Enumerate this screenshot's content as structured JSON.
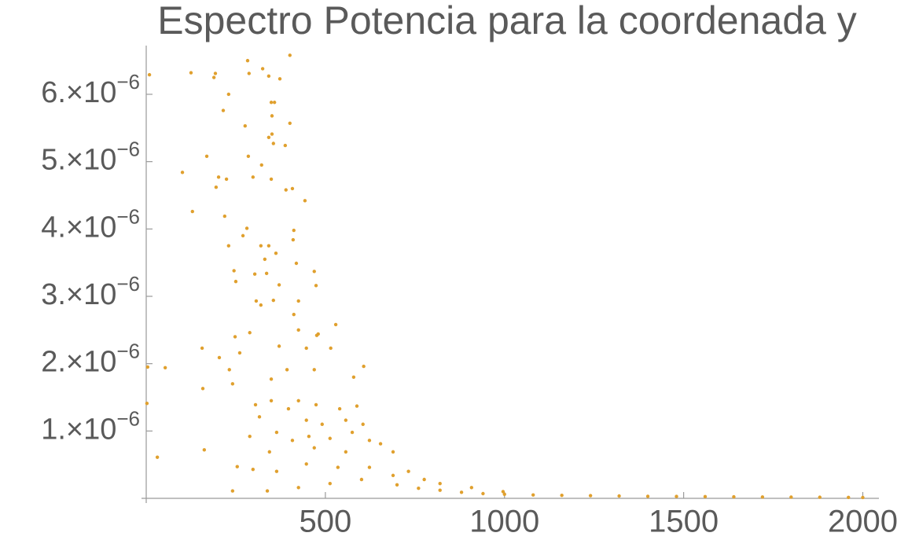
{
  "chart_data": {
    "type": "scatter",
    "title": "Espectro Potencia para la coordenada y",
    "color": "#e0a02e",
    "xlim": [
      0,
      2045
    ],
    "ylim": [
      0,
      6.7e-06
    ],
    "xticks": [
      500,
      1000,
      1500,
      2000
    ],
    "yticks": [
      {
        "value": 1e-06,
        "label": "1.×10−6"
      },
      {
        "value": 2e-06,
        "label": "2.×10−6"
      },
      {
        "value": 3e-06,
        "label": "3.×10−6"
      },
      {
        "value": 4e-06,
        "label": "4.×10−6"
      },
      {
        "value": 5e-06,
        "label": "5.×10−6"
      },
      {
        "value": 6e-06,
        "label": "6.×10−6"
      }
    ],
    "x": [
      9,
      125,
      189,
      193,
      230,
      215,
      283,
      287,
      325,
      342,
      401,
      373,
      349,
      358,
      276,
      351,
      342,
      351,
      355,
      401,
      388,
      101,
      169,
      285,
      322,
      349,
      202,
      224,
      298,
      195,
      408,
      390,
      443,
      129,
      219,
      281,
      270,
      412,
      230,
      320,
      342,
      331,
      362,
      410,
      245,
      419,
      469,
      303,
      336,
      474,
      250,
      371,
      307,
      320,
      355,
      425,
      412,
      529,
      248,
      289,
      425,
      476,
      480,
      156,
      371,
      447,
      515,
      204,
      261,
      393,
      469,
      607,
      4,
      53,
      232,
      349,
      579,
      158,
      241,
      305,
      349,
      397,
      425,
      474,
      540,
      588,
      2,
      316,
      447,
      491,
      557,
      605,
      289,
      364,
      408,
      454,
      513,
      575,
      623,
      654,
      162,
      31,
      344,
      469,
      557,
      689,
      254,
      298,
      364,
      447,
      535,
      623,
      732,
      241,
      338,
      425,
      513,
      601,
      689,
      776,
      820,
      908,
      996,
      700,
      760,
      820,
      880,
      940,
      1000,
      1080,
      1160,
      1240,
      1320,
      1400,
      1480,
      1560,
      1640,
      1720,
      1800,
      1880,
      1960,
      2000
    ],
    "y": [
      6.29e-06,
      6.32e-06,
      6.25e-06,
      6.31e-06,
      6e-06,
      5.76e-06,
      6.5e-06,
      6.31e-06,
      6.38e-06,
      6.27e-06,
      6.58e-06,
      6.23e-06,
      5.88e-06,
      5.88e-06,
      5.53e-06,
      5.68e-06,
      5.36e-06,
      5.41e-06,
      5.27e-06,
      5.57e-06,
      5.24e-06,
      4.84e-06,
      5.08e-06,
      5.08e-06,
      4.95e-06,
      4.74e-06,
      4.77e-06,
      4.74e-06,
      4.77e-06,
      4.62e-06,
      4.6e-06,
      4.58e-06,
      4.42e-06,
      4.26e-06,
      4.19e-06,
      4.01e-06,
      3.9e-06,
      3.98e-06,
      3.75e-06,
      3.75e-06,
      3.75e-06,
      3.55e-06,
      3.64e-06,
      3.84e-06,
      3.38e-06,
      3.49e-06,
      3.37e-06,
      3.33e-06,
      3.34e-06,
      3.16e-06,
      3.22e-06,
      3.17e-06,
      2.93e-06,
      2.87e-06,
      2.94e-06,
      2.93e-06,
      2.73e-06,
      2.58e-06,
      2.4e-06,
      2.46e-06,
      2.5e-06,
      2.42e-06,
      2.44e-06,
      2.23e-06,
      2.26e-06,
      2.23e-06,
      2.23e-06,
      2.09e-06,
      2.16e-06,
      1.91e-06,
      1.91e-06,
      1.96e-06,
      1.95e-06,
      1.94e-06,
      1.91e-06,
      1.77e-06,
      1.8e-06,
      1.63e-06,
      1.7e-06,
      1.39e-06,
      1.45e-06,
      1.33e-06,
      1.45e-06,
      1.39e-06,
      1.33e-06,
      1.37e-06,
      1.41e-06,
      1.21e-06,
      1.16e-06,
      1.1e-06,
      1.16e-06,
      1.1e-06,
      9.2e-07,
      9.8e-07,
      8.6e-07,
      9.2e-07,
      8.9e-07,
      9.8e-07,
      8.6e-07,
      8.1e-07,
      7.2e-07,
      6.1e-07,
      6.9e-07,
      7.5e-07,
      6.9e-07,
      6.9e-07,
      4.7e-07,
      4.3e-07,
      4e-07,
      5.1e-07,
      4.6e-07,
      4.6e-07,
      4e-07,
      1.1e-07,
      1.1e-07,
      1.6e-07,
      2.2e-07,
      2.8e-07,
      3.4e-07,
      2.8e-07,
      2.2e-07,
      1.6e-07,
      1e-07,
      2e-07,
      1.5e-07,
      1.2e-07,
      9e-08,
      7e-08,
      6e-08,
      5e-08,
      4.5e-08,
      4e-08,
      3.5e-08,
      3e-08,
      2.8e-08,
      2.5e-08,
      2.2e-08,
      2e-08,
      1.8e-08,
      1.6e-08,
      1.4e-08,
      1.2e-08
    ]
  }
}
